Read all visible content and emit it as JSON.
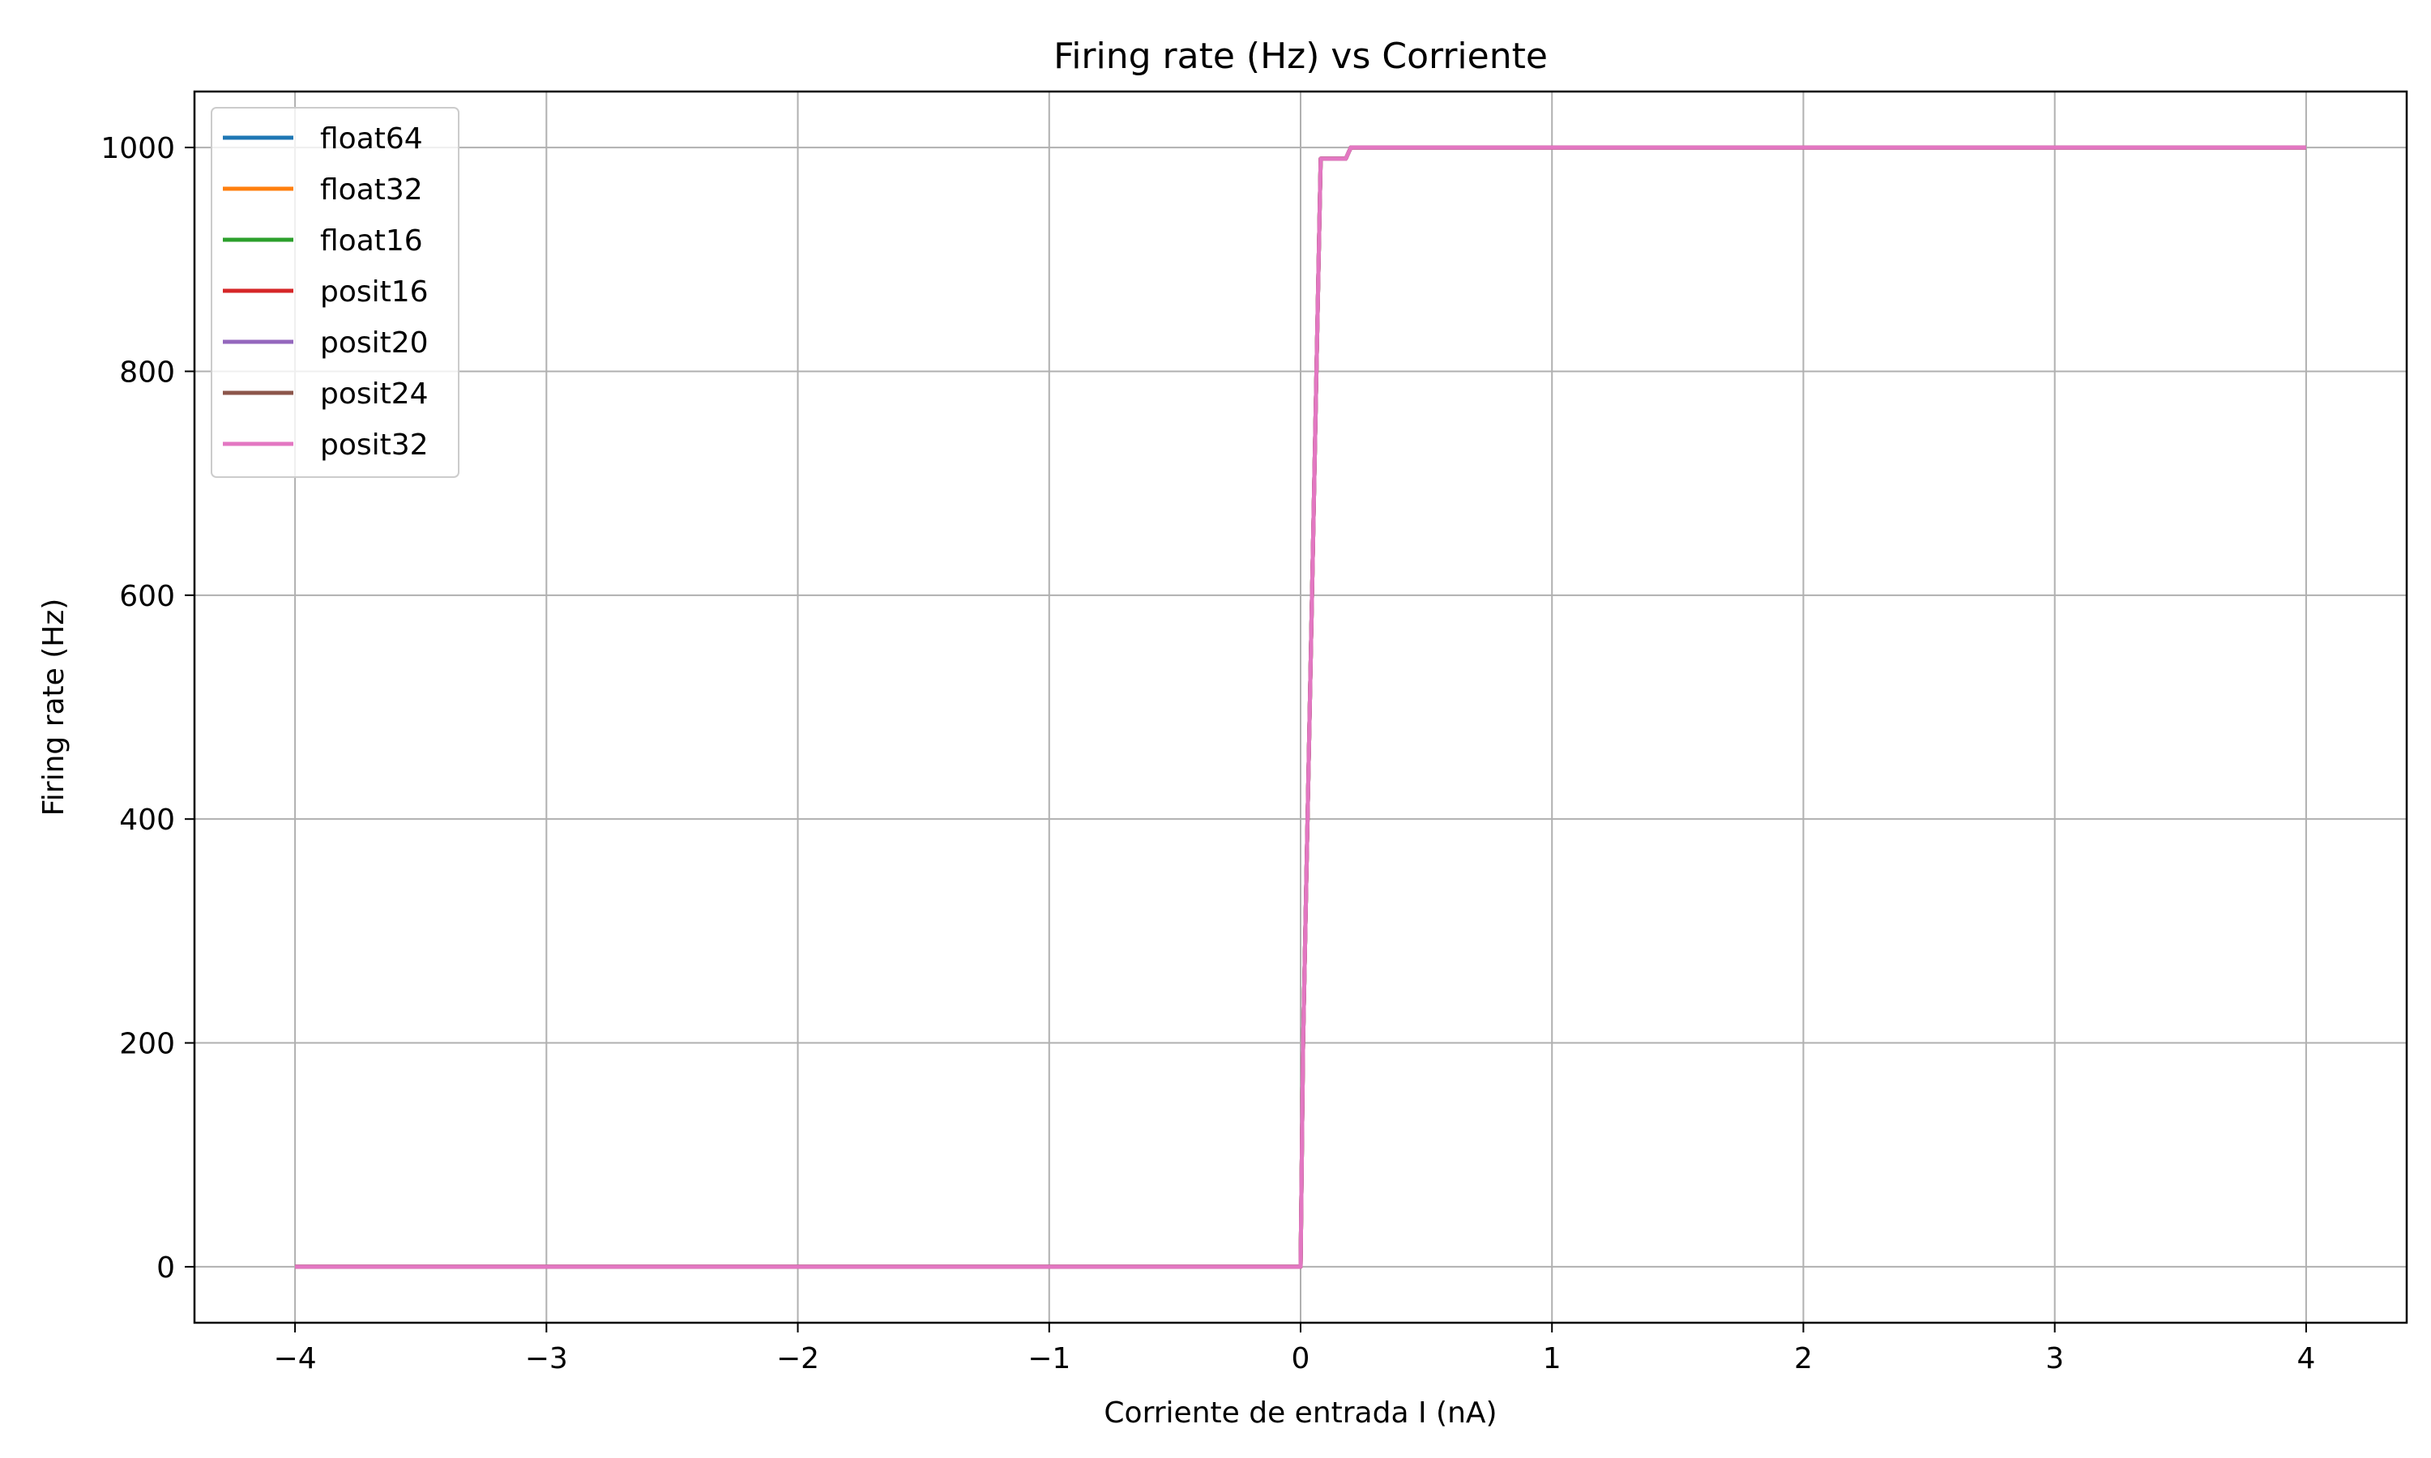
{
  "chart_data": {
    "type": "line",
    "title": "Firing rate (Hz) vs Corriente",
    "xlabel": "Corriente de entrada I (nA)",
    "ylabel": "Firing rate (Hz)",
    "xlim": [
      -4.4,
      4.4
    ],
    "ylim": [
      -50,
      1050
    ],
    "xticks": [
      -4,
      -3,
      -2,
      -1,
      0,
      1,
      2,
      3,
      4
    ],
    "xtick_labels": [
      "−4",
      "−3",
      "−2",
      "−1",
      "0",
      "1",
      "2",
      "3",
      "4"
    ],
    "yticks": [
      0,
      200,
      400,
      600,
      800,
      1000
    ],
    "ytick_labels": [
      "0",
      "200",
      "400",
      "600",
      "800",
      "1000"
    ],
    "grid": true,
    "legend_position": "top-left",
    "series": [
      {
        "name": "float64",
        "color": "#1f77b4"
      },
      {
        "name": "float32",
        "color": "#ff7f0e"
      },
      {
        "name": "float16",
        "color": "#2ca02c"
      },
      {
        "name": "posit16",
        "color": "#d62728"
      },
      {
        "name": "posit20",
        "color": "#9467bd"
      },
      {
        "name": "posit24",
        "color": "#8c564b"
      },
      {
        "name": "posit32",
        "color": "#e377c2"
      }
    ],
    "shared_curve": {
      "x": [
        -4,
        0,
        0.01,
        0.08,
        0.09,
        0.18,
        0.2,
        4
      ],
      "y": [
        0,
        0,
        200,
        990,
        990,
        990,
        1000,
        1000
      ]
    }
  }
}
